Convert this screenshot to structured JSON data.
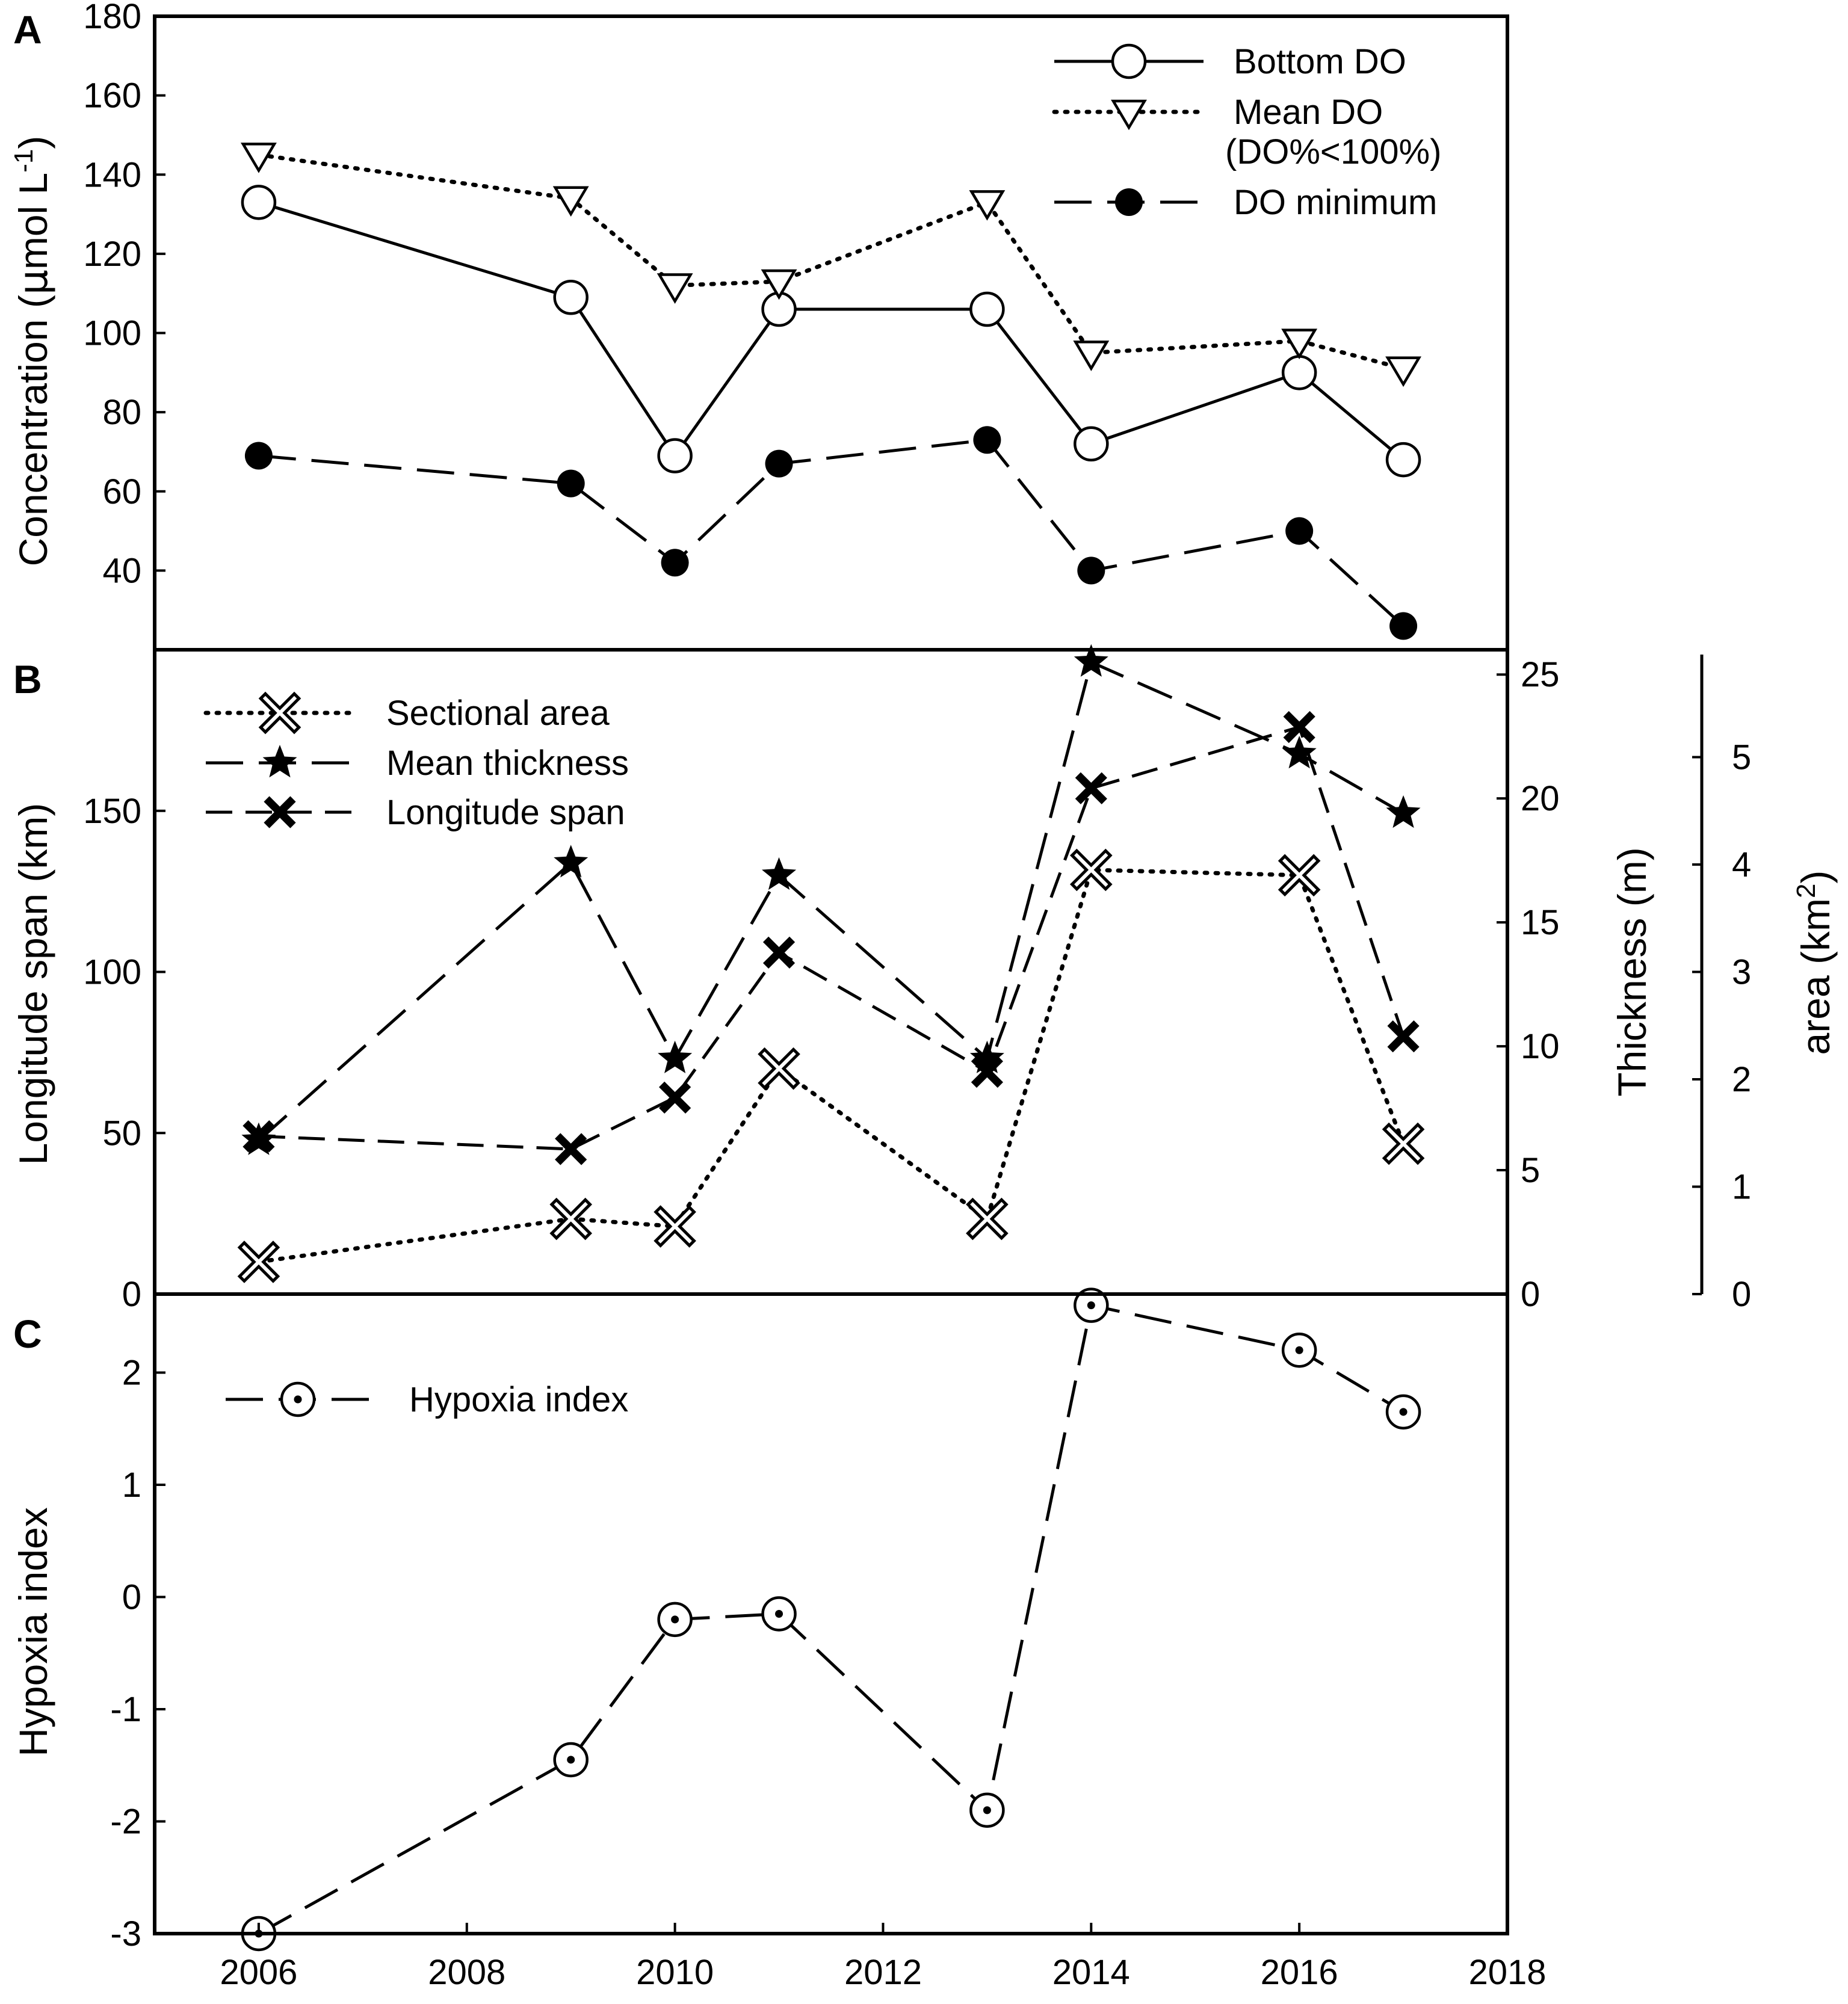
{
  "chart_data": [
    {
      "panel": "A",
      "type": "line",
      "ylabel": "Concentration (μmol L-1)",
      "ylabel_parts": {
        "prefix": "Concentration (",
        "mu": "μ",
        "unit": "mol L",
        "sup": "-1",
        "suffix": ")"
      },
      "ylim": [
        20,
        180
      ],
      "yticks": [
        40,
        60,
        80,
        100,
        120,
        140,
        160,
        180
      ],
      "xlim": [
        2005,
        2018
      ],
      "series": [
        {
          "name": "Bottom DO",
          "legend": "Bottom DO",
          "marker": "open-circle",
          "line": "solid",
          "x": [
            2006,
            2009,
            2010,
            2011,
            2013,
            2014,
            2016,
            2017
          ],
          "values": [
            133,
            109,
            69,
            106,
            106,
            72,
            90,
            68
          ]
        },
        {
          "name": "Mean DO",
          "legend": "Mean DO",
          "legend2": "(DO%<100%)",
          "marker": "open-triangle-down",
          "line": "dotted",
          "x": [
            2006,
            2009,
            2010,
            2011,
            2013,
            2014,
            2016,
            2017
          ],
          "values": [
            145,
            134,
            112,
            113,
            133,
            95,
            98,
            91
          ]
        },
        {
          "name": "DO minimum",
          "legend": "DO minimum",
          "marker": "filled-circle",
          "line": "long-dash",
          "x": [
            2006,
            2009,
            2010,
            2011,
            2013,
            2014,
            2016,
            2017
          ],
          "values": [
            69,
            62,
            42,
            67,
            73,
            40,
            50,
            26
          ]
        }
      ]
    },
    {
      "panel": "B",
      "type": "line",
      "ylabel": "Longitude span (km)",
      "ylim": [
        0,
        200
      ],
      "yticks": [
        0,
        50,
        100,
        150
      ],
      "y2label": "Thickness (m)",
      "y2lim": [
        0,
        26
      ],
      "y2ticks": [
        0,
        5,
        10,
        15,
        20,
        25
      ],
      "y3label": "area (km2)",
      "y3label_parts": {
        "prefix": "area (km",
        "sup": "2",
        "suffix": ")"
      },
      "y3lim": [
        0,
        6
      ],
      "y3ticks": [
        0,
        1,
        2,
        3,
        4,
        5
      ],
      "xlim": [
        2005,
        2018
      ],
      "series": [
        {
          "name": "Sectional area",
          "legend": "Sectional area",
          "axis": "area",
          "marker": "double-cross",
          "line": "dotted",
          "x": [
            2006,
            2009,
            2010,
            2011,
            2013,
            2014,
            2016,
            2017
          ],
          "values": [
            0.3,
            0.7,
            0.63,
            2.1,
            0.7,
            3.95,
            3.9,
            1.4
          ]
        },
        {
          "name": "Mean thickness",
          "legend": "Mean thickness",
          "axis": "thickness",
          "marker": "filled-star",
          "line": "long-dash",
          "x": [
            2006,
            2009,
            2010,
            2011,
            2013,
            2014,
            2016,
            2017
          ],
          "values": [
            6.2,
            17.4,
            9.5,
            16.9,
            9.5,
            25.5,
            21.8,
            19.4
          ]
        },
        {
          "name": "Longitude span",
          "legend": "Longitude span",
          "axis": "longitude",
          "marker": "bold-x",
          "line": "dash",
          "x": [
            2006,
            2009,
            2010,
            2011,
            2013,
            2014,
            2016,
            2017
          ],
          "values": [
            49,
            45,
            61,
            106,
            69,
            157,
            176,
            80
          ]
        }
      ]
    },
    {
      "panel": "C",
      "type": "line",
      "ylabel": "Hypoxia index",
      "xlabel": "",
      "ylim": [
        -3,
        2.7
      ],
      "yticks": [
        -3,
        -2,
        -1,
        0,
        1,
        2
      ],
      "xlim": [
        2005,
        2018
      ],
      "xticks": [
        2006,
        2008,
        2010,
        2012,
        2014,
        2016,
        2018
      ],
      "series": [
        {
          "name": "Hypoxia index",
          "legend": "Hypoxia index",
          "marker": "dotted-circle",
          "line": "long-dash",
          "x": [
            2006,
            2009,
            2010,
            2011,
            2013,
            2014,
            2016,
            2017
          ],
          "values": [
            -3.0,
            -1.45,
            -0.2,
            -0.15,
            -1.9,
            2.6,
            2.2,
            1.65
          ]
        }
      ]
    }
  ]
}
